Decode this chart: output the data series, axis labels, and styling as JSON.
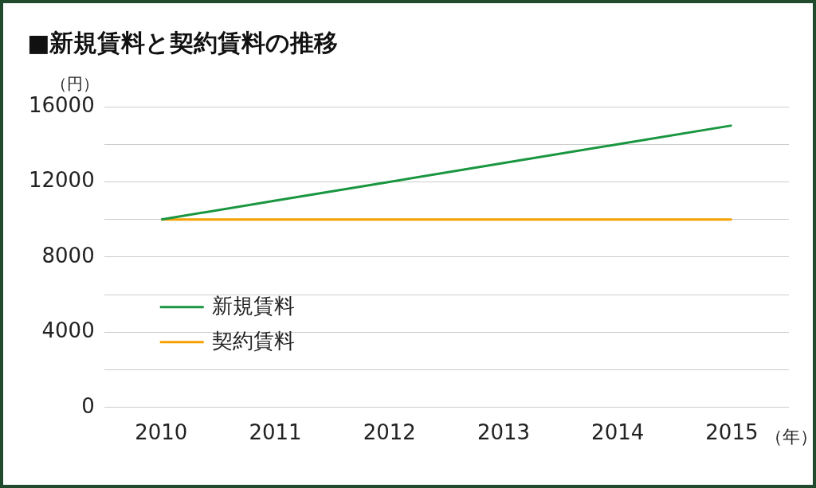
{
  "chart_data": {
    "type": "line",
    "title": "■新規賃料と契約賃料の推移",
    "ylabel": "（円）",
    "xlabel": "（年）",
    "categories": [
      "2010",
      "2011",
      "2012",
      "2013",
      "2014",
      "2015"
    ],
    "series": [
      {
        "name": "新規賃料",
        "color": "#1a9641",
        "values": [
          10000,
          11000,
          12000,
          13000,
          14000,
          15000
        ]
      },
      {
        "name": "契約賃料",
        "color": "#f5a000",
        "values": [
          10000,
          10000,
          10000,
          10000,
          10000,
          10000
        ]
      }
    ],
    "ylim": [
      0,
      16000
    ],
    "yticks": [
      0,
      {
        "value": 2000,
        "label": null
      },
      4000,
      {
        "value": 6000,
        "label": null
      },
      8000,
      {
        "value": 10000,
        "label": null
      },
      12000,
      {
        "value": 14000,
        "label": null
      },
      16000
    ],
    "grid": "y",
    "legend": "bottom left",
    "marker": "none",
    "line_style": "solid"
  }
}
